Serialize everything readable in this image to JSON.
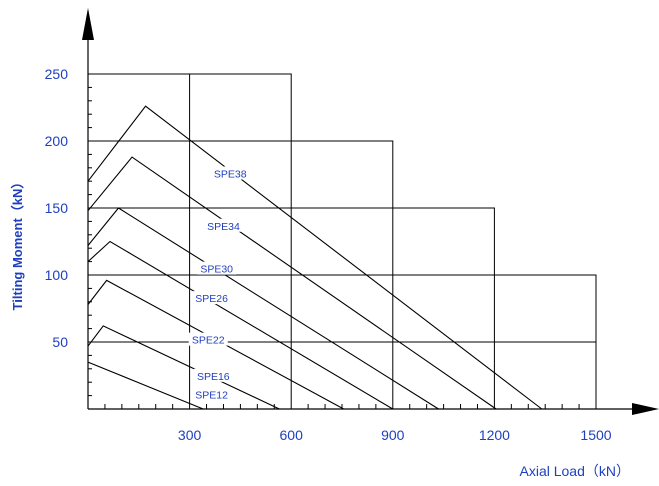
{
  "chart_data": {
    "type": "line",
    "xlabel": "Axial Load（kN）",
    "ylabel": "Tilting Moment（kN）",
    "xlim": [
      0,
      1500
    ],
    "ylim": [
      0,
      250
    ],
    "x_ticks": [
      "300",
      "600",
      "900",
      "1200",
      "1500"
    ],
    "y_ticks": [
      "50",
      "100",
      "150",
      "200",
      "250"
    ],
    "grid_boxes": [
      {
        "x_max": 600,
        "y_max": 250
      },
      {
        "x_max": 900,
        "y_max": 200
      },
      {
        "x_max": 1200,
        "y_max": 150
      },
      {
        "x_max": 1500,
        "y_max": 100
      },
      {
        "x_max": 1500,
        "y_max": 50
      }
    ],
    "grid_vertical_at": 300,
    "series": [
      {
        "name": "SPE38",
        "x": [
          0,
          170,
          1340
        ],
        "y": [
          170,
          226,
          0
        ]
      },
      {
        "name": "SPE34",
        "x": [
          0,
          130,
          1205
        ],
        "y": [
          148,
          188,
          0
        ]
      },
      {
        "name": "SPE30",
        "x": [
          0,
          90,
          1035
        ],
        "y": [
          122,
          150,
          0
        ]
      },
      {
        "name": "SPE26",
        "x": [
          0,
          65,
          900
        ],
        "y": [
          110,
          125,
          0
        ]
      },
      {
        "name": "SPE22",
        "x": [
          0,
          55,
          755
        ],
        "y": [
          78,
          96,
          0
        ]
      },
      {
        "name": "SPE16",
        "x": [
          0,
          45,
          565
        ],
        "y": [
          47,
          62,
          0
        ]
      },
      {
        "name": "SPE12",
        "x": [
          0,
          340
        ],
        "y": [
          35,
          0
        ]
      }
    ],
    "series_label_positions": [
      {
        "name": "SPE38",
        "x": 420,
        "y": 175
      },
      {
        "name": "SPE34",
        "x": 400,
        "y": 136
      },
      {
        "name": "SPE30",
        "x": 380,
        "y": 104
      },
      {
        "name": "SPE26",
        "x": 365,
        "y": 82
      },
      {
        "name": "SPE22",
        "x": 355,
        "y": 51
      },
      {
        "name": "SPE16",
        "x": 370,
        "y": 24
      },
      {
        "name": "SPE12",
        "x": 365,
        "y": 10
      }
    ],
    "grid": true
  }
}
